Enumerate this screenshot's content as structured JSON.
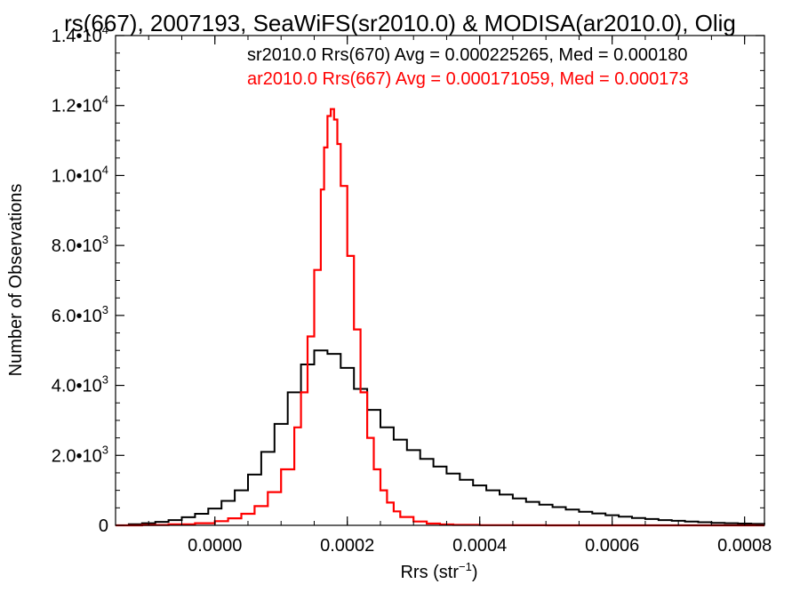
{
  "chart_data": {
    "type": "line",
    "title": "rs(667), 2007193, SeaWiFS(sr2010.0) & MODISA(ar2010.0), Olig",
    "xlabel": "Rrs (str",
    "xlabel_sup": "−1",
    "xlabel_close": ")",
    "ylabel": "Number of Observations",
    "xlim": [
      -0.00015,
      0.00083
    ],
    "ylim": [
      0,
      14000
    ],
    "x_ticks": [
      0.0,
      0.0002,
      0.0004,
      0.0006,
      0.0008
    ],
    "x_tick_labels": [
      "0.0000",
      "0.0002",
      "0.0004",
      "0.0006",
      "0.0008"
    ],
    "y_ticks": [
      0,
      2000,
      4000,
      6000,
      8000,
      10000,
      12000,
      14000
    ],
    "y_tick_labels": [
      {
        "mantissa": "0",
        "exp": ""
      },
      {
        "mantissa": "2.0•10",
        "exp": "3"
      },
      {
        "mantissa": "4.0•10",
        "exp": "3"
      },
      {
        "mantissa": "6.0•10",
        "exp": "3"
      },
      {
        "mantissa": "8.0•10",
        "exp": "3"
      },
      {
        "mantissa": "1.0•10",
        "exp": "4"
      },
      {
        "mantissa": "1.2•10",
        "exp": "4"
      },
      {
        "mantissa": "1.4•10",
        "exp": "4"
      }
    ],
    "grid": false,
    "legend_placement": "top-right",
    "series": [
      {
        "name": "sr2010.0 Rrs(670) Avg = 0.000225265, Med = 0.000180",
        "color": "#000000",
        "x": [
          -0.00015,
          -0.00013,
          -0.00011,
          -9e-05,
          -7e-05,
          -5e-05,
          -3e-05,
          -1e-05,
          1e-05,
          3e-05,
          5e-05,
          7e-05,
          9e-05,
          0.00011,
          0.00013,
          0.00015,
          0.00017,
          0.00019,
          0.00021,
          0.00023,
          0.00025,
          0.00027,
          0.00029,
          0.00031,
          0.00033,
          0.00035,
          0.00037,
          0.00039,
          0.00041,
          0.00043,
          0.00045,
          0.00047,
          0.00049,
          0.00051,
          0.00053,
          0.00055,
          0.00057,
          0.00059,
          0.00061,
          0.00063,
          0.00065,
          0.00067,
          0.00069,
          0.00071,
          0.00073,
          0.00075,
          0.00077,
          0.00079,
          0.00081,
          0.00083
        ],
        "y": [
          0,
          30,
          60,
          100,
          150,
          230,
          330,
          480,
          700,
          1000,
          1450,
          2100,
          2900,
          3800,
          4600,
          5000,
          4900,
          4500,
          3900,
          3300,
          2800,
          2450,
          2150,
          1900,
          1680,
          1480,
          1300,
          1140,
          1000,
          880,
          770,
          670,
          590,
          520,
          450,
          390,
          340,
          290,
          250,
          210,
          180,
          150,
          130,
          110,
          90,
          70,
          60,
          50,
          40,
          30
        ]
      },
      {
        "name": "ar2010.0 Rrs(667) Avg = 0.000171059, Med = 0.000173",
        "color": "#ff0000",
        "x": [
          -0.00015,
          -0.00011,
          -7e-05,
          -3e-05,
          0.0,
          2e-05,
          4e-05,
          6e-05,
          8e-05,
          0.0001,
          0.00012,
          0.00013,
          0.00014,
          0.00015,
          0.00016,
          0.000165,
          0.00017,
          0.000175,
          0.00018,
          0.000185,
          0.00019,
          0.0002,
          0.00021,
          0.00022,
          0.00023,
          0.00024,
          0.00025,
          0.00026,
          0.00027,
          0.00028,
          0.0003,
          0.00032,
          0.00034,
          0.00036,
          0.0004,
          0.00045,
          0.0005,
          0.0006,
          0.0007,
          0.00083
        ],
        "y": [
          0,
          10,
          30,
          60,
          120,
          200,
          330,
          550,
          950,
          1600,
          2800,
          3800,
          5400,
          7300,
          9600,
          10800,
          11700,
          11900,
          11600,
          10900,
          9700,
          7700,
          5600,
          3800,
          2500,
          1600,
          1000,
          650,
          400,
          240,
          110,
          50,
          25,
          12,
          5,
          2,
          0,
          0,
          0,
          0
        ]
      }
    ]
  }
}
